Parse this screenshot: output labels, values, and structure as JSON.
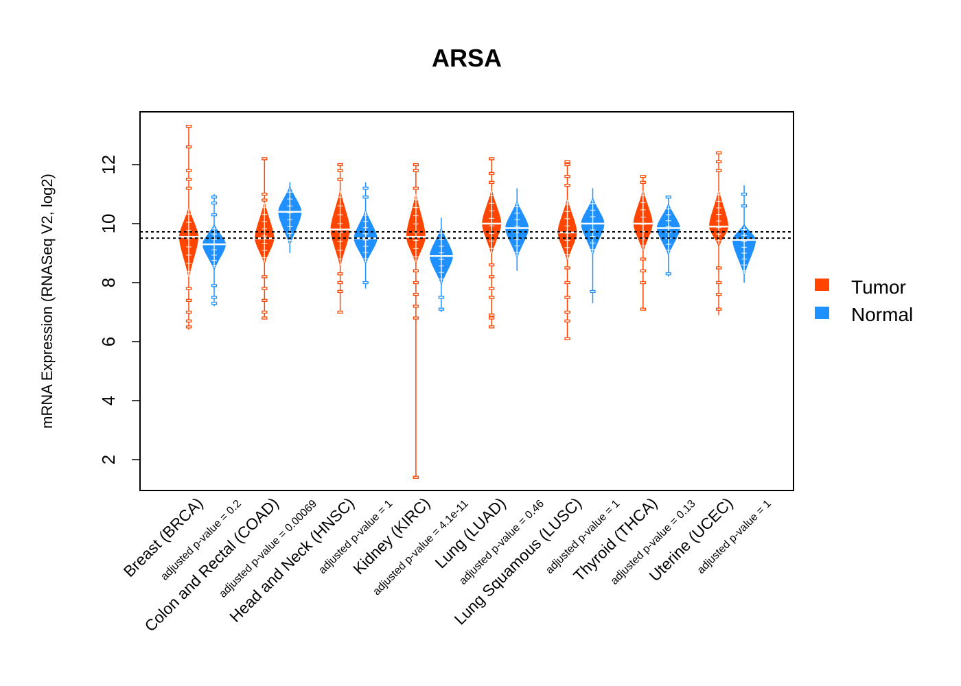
{
  "chart_data": {
    "type": "beanplot",
    "title": "ARSA",
    "xlabel": "",
    "ylabel": "mRNA Expression (RNASeq V2, log2)",
    "ylim": [
      1.0,
      13.8
    ],
    "yticks": [
      2,
      4,
      6,
      8,
      10,
      12
    ],
    "ytick_labels": [
      "2",
      "4",
      "6",
      "8",
      "10",
      "12"
    ],
    "grid": false,
    "reference_lines": [
      9.72,
      9.51
    ],
    "legend": {
      "placement": "right",
      "entries": [
        {
          "name": "Tumor",
          "color": "#FF4500"
        },
        {
          "name": "Normal",
          "color": "#1E90FF"
        }
      ]
    },
    "categories": [
      {
        "label": "Breast (BRCA)",
        "pvalue_label": "adjusted p-value = 0.2"
      },
      {
        "label": "Colon and Rectal (COAD)",
        "pvalue_label": "adjusted p-value = 0.00069"
      },
      {
        "label": "Head and Neck (HNSC)",
        "pvalue_label": "adjusted p-value = 1"
      },
      {
        "label": "Kidney (KIRC)",
        "pvalue_label": "adjusted p-value = 4.1e-11"
      },
      {
        "label": "Lung (LUAD)",
        "pvalue_label": "adjusted p-value = 0.46"
      },
      {
        "label": "Lung Squamous (LUSC)",
        "pvalue_label": "adjusted p-value = 1"
      },
      {
        "label": "Thyroid (THCA)",
        "pvalue_label": "adjusted p-value = 0.13"
      },
      {
        "label": "Uterine (UCEC)",
        "pvalue_label": "adjusted p-value = 1"
      }
    ],
    "series": [
      {
        "name": "Tumor",
        "color": "#FF4500",
        "groups": [
          {
            "median": 9.55,
            "min": 6.4,
            "max": 13.3,
            "bean_low": 8.1,
            "bean_high": 10.6,
            "outliers": [
              13.3,
              12.6,
              11.8,
              11.5,
              11.2,
              7.8,
              7.4,
              7.0,
              6.7,
              6.5
            ]
          },
          {
            "median": 9.5,
            "min": 6.8,
            "max": 12.2,
            "bean_low": 8.6,
            "bean_high": 10.8,
            "outliers": [
              12.2,
              11.0,
              10.8,
              8.2,
              7.8,
              7.4,
              7.0,
              6.8
            ]
          },
          {
            "median": 9.8,
            "min": 7.0,
            "max": 12.0,
            "bean_low": 8.5,
            "bean_high": 11.2,
            "outliers": [
              12.0,
              11.8,
              11.5,
              8.3,
              8.0,
              7.7,
              7.0
            ]
          },
          {
            "median": 9.55,
            "min": 1.4,
            "max": 12.0,
            "bean_low": 8.6,
            "bean_high": 11.1,
            "outliers": [
              12.0,
              11.8,
              11.2,
              8.4,
              8.0,
              7.6,
              7.2,
              6.8,
              1.4
            ]
          },
          {
            "median": 10.0,
            "min": 6.5,
            "max": 12.2,
            "bean_low": 8.9,
            "bean_high": 11.2,
            "outliers": [
              12.2,
              11.7,
              11.4,
              8.6,
              8.2,
              7.8,
              7.5,
              6.9,
              6.8,
              6.5
            ]
          },
          {
            "median": 9.7,
            "min": 6.1,
            "max": 12.1,
            "bean_low": 8.7,
            "bean_high": 10.9,
            "outliers": [
              12.1,
              12.0,
              11.6,
              11.3,
              8.5,
              8.0,
              7.5,
              7.0,
              6.7,
              6.1
            ]
          },
          {
            "median": 10.0,
            "min": 7.1,
            "max": 11.6,
            "bean_low": 9.0,
            "bean_high": 11.2,
            "outliers": [
              11.6,
              11.4,
              8.8,
              8.4,
              8.0,
              7.1
            ]
          },
          {
            "median": 9.9,
            "min": 6.9,
            "max": 12.4,
            "bean_low": 9.2,
            "bean_high": 11.2,
            "outliers": [
              12.4,
              12.1,
              11.8,
              8.5,
              8.0,
              7.6,
              7.1
            ]
          }
        ]
      },
      {
        "name": "Normal",
        "color": "#1E90FF",
        "groups": [
          {
            "median": 9.3,
            "min": 7.2,
            "max": 11.0,
            "bean_low": 8.4,
            "bean_high": 10.0,
            "outliers": [
              10.9,
              10.7,
              10.3,
              7.9,
              7.5,
              7.3
            ]
          },
          {
            "median": 10.4,
            "min": 9.0,
            "max": 11.4,
            "bean_low": 9.2,
            "bean_high": 11.3,
            "outliers": []
          },
          {
            "median": 9.5,
            "min": 7.8,
            "max": 11.4,
            "bean_low": 8.6,
            "bean_high": 10.5,
            "outliers": [
              11.2,
              10.9,
              8.0
            ]
          },
          {
            "median": 8.9,
            "min": 7.0,
            "max": 10.2,
            "bean_low": 7.9,
            "bean_high": 9.9,
            "outliers": [
              7.5,
              7.1
            ]
          },
          {
            "median": 9.85,
            "min": 8.4,
            "max": 11.2,
            "bean_low": 8.8,
            "bean_high": 10.8,
            "outliers": []
          },
          {
            "median": 10.0,
            "min": 7.3,
            "max": 11.2,
            "bean_low": 8.9,
            "bean_high": 10.9,
            "outliers": [
              7.7
            ]
          },
          {
            "median": 9.85,
            "min": 8.2,
            "max": 10.9,
            "bean_low": 8.9,
            "bean_high": 10.7,
            "outliers": [
              10.9,
              8.3
            ]
          },
          {
            "median": 9.45,
            "min": 8.0,
            "max": 11.3,
            "bean_low": 8.2,
            "bean_high": 10.0,
            "outliers": [
              11.0,
              10.6
            ]
          }
        ]
      }
    ]
  }
}
